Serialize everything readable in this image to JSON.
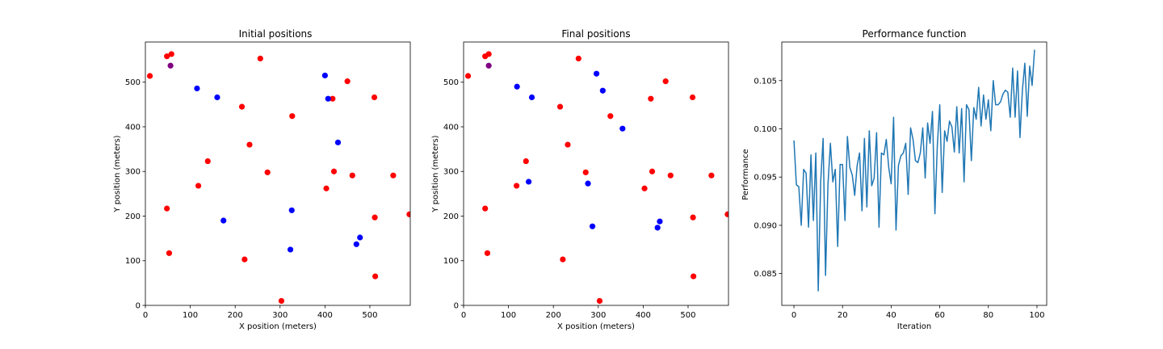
{
  "chart_data": [
    {
      "type": "scatter",
      "title": "Initial positions",
      "xlabel": "X position (meters)",
      "ylabel": "Y position (meters)",
      "xlim": [
        0,
        590
      ],
      "ylim": [
        0,
        590
      ],
      "xticks": [
        0,
        100,
        200,
        300,
        400,
        500
      ],
      "yticks": [
        0,
        100,
        200,
        300,
        400,
        500
      ],
      "grid": false,
      "series": [
        {
          "color": "#ff0000",
          "points": [
            [
              10,
              514
            ],
            [
              48,
              558
            ],
            [
              58,
              563
            ],
            [
              256,
              553
            ],
            [
              215,
              445
            ],
            [
              327,
              424
            ],
            [
              450,
              502
            ],
            [
              417,
              463
            ],
            [
              510,
              466
            ],
            [
              232,
              360
            ],
            [
              272,
              298
            ],
            [
              139,
              323
            ],
            [
              420,
              300
            ],
            [
              461,
              291
            ],
            [
              552,
              291
            ],
            [
              118,
              268
            ],
            [
              403,
              262
            ],
            [
              48,
              217
            ],
            [
              511,
              197
            ],
            [
              588,
              204
            ],
            [
              53,
              117
            ],
            [
              221,
              103
            ],
            [
              512,
              65
            ],
            [
              303,
              10
            ]
          ]
        },
        {
          "color": "#0000ff",
          "points": [
            [
              115,
              486
            ],
            [
              160,
              466
            ],
            [
              400,
              515
            ],
            [
              407,
              463
            ],
            [
              429,
              365
            ],
            [
              326,
              213
            ],
            [
              174,
              190
            ],
            [
              323,
              125
            ],
            [
              478,
              152
            ],
            [
              470,
              137
            ]
          ]
        },
        {
          "color": "#800080",
          "points": [
            [
              56,
              537
            ]
          ]
        }
      ]
    },
    {
      "type": "scatter",
      "title": "Final positions",
      "xlabel": "X position (meters)",
      "ylabel": "Y position (meters)",
      "xlim": [
        0,
        590
      ],
      "ylim": [
        0,
        590
      ],
      "xticks": [
        0,
        100,
        200,
        300,
        400,
        500
      ],
      "yticks": [
        0,
        100,
        200,
        300,
        400,
        500
      ],
      "grid": false,
      "series": [
        {
          "color": "#ff0000",
          "points": [
            [
              10,
              514
            ],
            [
              48,
              558
            ],
            [
              56,
              563
            ],
            [
              256,
              553
            ],
            [
              215,
              445
            ],
            [
              327,
              424
            ],
            [
              450,
              502
            ],
            [
              417,
              463
            ],
            [
              510,
              466
            ],
            [
              232,
              360
            ],
            [
              272,
              298
            ],
            [
              139,
              323
            ],
            [
              420,
              300
            ],
            [
              461,
              291
            ],
            [
              552,
              291
            ],
            [
              118,
              268
            ],
            [
              403,
              262
            ],
            [
              48,
              217
            ],
            [
              511,
              197
            ],
            [
              588,
              204
            ],
            [
              53,
              117
            ],
            [
              221,
              103
            ],
            [
              512,
              65
            ],
            [
              303,
              10
            ]
          ]
        },
        {
          "color": "#0000ff",
          "points": [
            [
              119,
              490
            ],
            [
              152,
              466
            ],
            [
              296,
              519
            ],
            [
              310,
              481
            ],
            [
              354,
              396
            ],
            [
              145,
              277
            ],
            [
              277,
              273
            ],
            [
              287,
              177
            ],
            [
              437,
              188
            ],
            [
              432,
              174
            ]
          ]
        },
        {
          "color": "#800080",
          "points": [
            [
              56,
              537
            ]
          ]
        }
      ]
    },
    {
      "type": "line",
      "title": "Performance function",
      "xlabel": "Iteration",
      "ylabel": "Performance",
      "xlim": [
        -5,
        104
      ],
      "ylim": [
        0.0817,
        0.109
      ],
      "xticks": [
        0,
        20,
        40,
        60,
        80,
        100
      ],
      "yticks": [
        0.085,
        0.09,
        0.095,
        0.1,
        0.105
      ],
      "ytick_labels": [
        "0.085",
        "0.090",
        "0.095",
        "0.100",
        "0.105"
      ],
      "grid": false,
      "series": [
        {
          "color": "#1f77b4",
          "x": [
            0,
            1,
            2,
            3,
            4,
            5,
            6,
            7,
            8,
            9,
            10,
            11,
            12,
            13,
            14,
            15,
            16,
            17,
            18,
            19,
            20,
            21,
            22,
            23,
            24,
            25,
            26,
            27,
            28,
            29,
            30,
            31,
            32,
            33,
            34,
            35,
            36,
            37,
            38,
            39,
            40,
            41,
            42,
            43,
            44,
            45,
            46,
            47,
            48,
            49,
            50,
            51,
            52,
            53,
            54,
            55,
            56,
            57,
            58,
            59,
            60,
            61,
            62,
            63,
            64,
            65,
            66,
            67,
            68,
            69,
            70,
            71,
            72,
            73,
            74,
            75,
            76,
            77,
            78,
            79,
            80,
            81,
            82,
            83,
            84,
            85,
            86,
            87,
            88,
            89,
            90,
            91,
            92,
            93,
            94,
            95,
            96,
            97,
            98,
            99
          ],
          "y": [
            0.0988,
            0.0942,
            0.094,
            0.09,
            0.0958,
            0.0954,
            0.0898,
            0.0973,
            0.0905,
            0.0975,
            0.0832,
            0.0945,
            0.099,
            0.0848,
            0.0942,
            0.0985,
            0.0945,
            0.0958,
            0.0878,
            0.0963,
            0.0963,
            0.0905,
            0.0992,
            0.096,
            0.0952,
            0.0931,
            0.0962,
            0.0975,
            0.0915,
            0.099,
            0.0919,
            0.0998,
            0.0941,
            0.0949,
            0.0996,
            0.0898,
            0.0975,
            0.0973,
            0.0989,
            0.096,
            0.0943,
            0.1012,
            0.0895,
            0.0962,
            0.0972,
            0.0975,
            0.0985,
            0.0932,
            0.1001,
            0.0989,
            0.0967,
            0.0965,
            0.0975,
            0.1001,
            0.0949,
            0.1006,
            0.0985,
            0.1018,
            0.0912,
            0.0983,
            0.1025,
            0.0934,
            0.0998,
            0.0987,
            0.1008,
            0.1002,
            0.0976,
            0.1023,
            0.0975,
            0.1021,
            0.0945,
            0.1025,
            0.102,
            0.0967,
            0.1022,
            0.101,
            0.1043,
            0.1003,
            0.1035,
            0.101,
            0.103,
            0.0998,
            0.105,
            0.1025,
            0.1025,
            0.1028,
            0.1036,
            0.104,
            0.1038,
            0.1012,
            0.1063,
            0.1012,
            0.106,
            0.0991,
            0.104,
            0.1068,
            0.1013,
            0.1065,
            0.1045,
            0.1082
          ]
        }
      ]
    }
  ]
}
